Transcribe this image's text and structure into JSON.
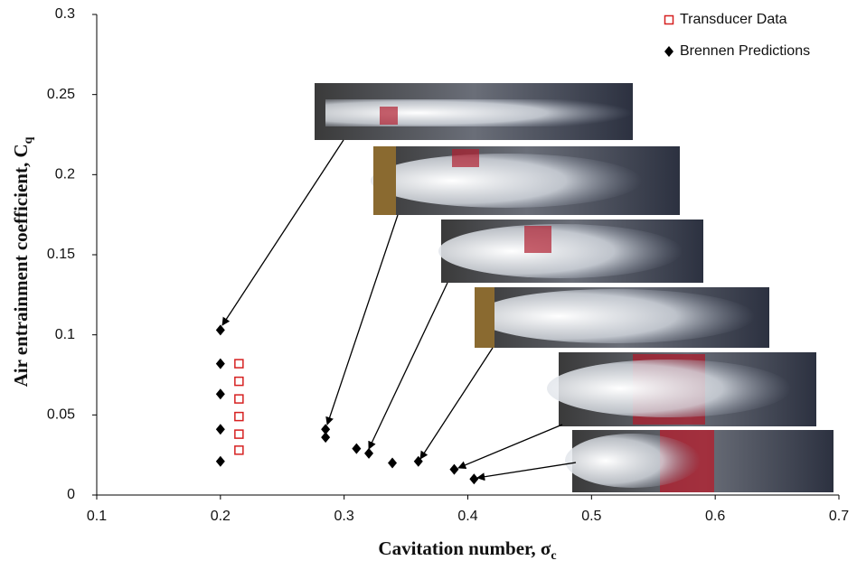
{
  "chart_data": {
    "type": "scatter",
    "xlabel": "Cavitation number, σ",
    "xlabel_sub": "c",
    "ylabel": "Air entrainment coefficient, C",
    "ylabel_sub": "q",
    "xlim": [
      0.1,
      0.7
    ],
    "xticks": [
      0.1,
      0.2,
      0.3,
      0.4,
      0.5,
      0.6,
      0.7
    ],
    "ylim": [
      0,
      0.3
    ],
    "yticks": [
      0,
      0.05,
      0.1,
      0.15,
      0.2,
      0.25,
      0.3
    ],
    "grid": false,
    "legend": "upper right",
    "series": [
      {
        "name": "Transducer Data",
        "color": "#d62020",
        "marker": "square",
        "x": [
          0.215,
          0.215,
          0.215,
          0.215,
          0.215,
          0.215
        ],
        "values": [
          0.082,
          0.071,
          0.06,
          0.049,
          0.038,
          0.028
        ]
      },
      {
        "name": "Brennen Predictions",
        "color": "#000000",
        "marker": "diamond",
        "x": [
          0.2,
          0.2,
          0.2,
          0.2,
          0.2,
          0.285,
          0.285,
          0.31,
          0.32,
          0.339,
          0.36,
          0.389,
          0.405
        ],
        "values": [
          0.103,
          0.082,
          0.063,
          0.041,
          0.021,
          0.041,
          0.036,
          0.029,
          0.026,
          0.02,
          0.021,
          0.016,
          0.01
        ]
      }
    ]
  }
}
